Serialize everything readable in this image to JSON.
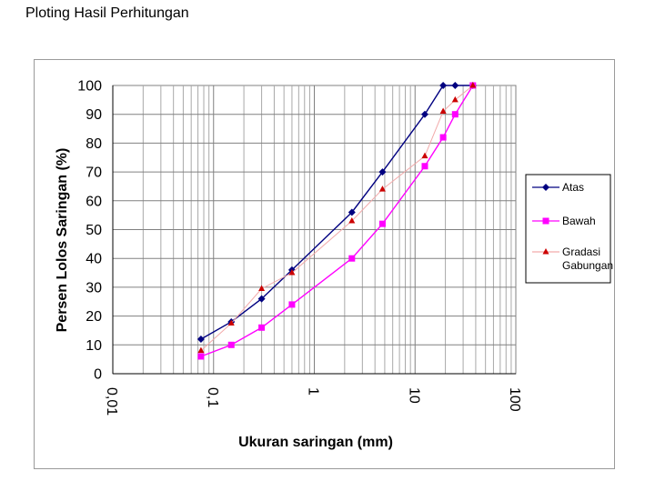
{
  "slide": {
    "title": "Ploting Hasil Perhitungan"
  },
  "chart_data": {
    "type": "scatter",
    "xscale": "log",
    "xlim": [
      0.01,
      100
    ],
    "ylim": [
      0,
      100
    ],
    "grid": true,
    "xlabel": "Ukuran saringan (mm)",
    "ylabel": "Persen Lolos Saringan (%)",
    "x_tick_labels": [
      "0,01",
      "0,1",
      "1",
      "10",
      "100"
    ],
    "y_tick_labels": [
      "0",
      "10",
      "20",
      "30",
      "40",
      "50",
      "60",
      "70",
      "80",
      "90",
      "100"
    ],
    "legend_position": "right",
    "series": [
      {
        "name": "Atas",
        "color": "#000080",
        "marker": "diamond",
        "x": [
          0.075,
          0.15,
          0.3,
          0.6,
          2.36,
          4.75,
          12.5,
          19,
          25,
          37.5
        ],
        "y": [
          12,
          18,
          26,
          36,
          56,
          70,
          90,
          100,
          100,
          100
        ]
      },
      {
        "name": "Bawah",
        "color": "#ff00ff",
        "marker": "square",
        "x": [
          0.075,
          0.15,
          0.3,
          0.6,
          2.36,
          4.75,
          12.5,
          19,
          25,
          37.5
        ],
        "y": [
          6,
          10,
          16,
          24,
          40,
          52,
          72,
          82,
          90,
          100
        ]
      },
      {
        "name": "Gradasi Gabungan",
        "color": "#cc0000",
        "line_color": "#f2aaaa",
        "marker": "triangle",
        "x": [
          0.075,
          0.15,
          0.3,
          0.6,
          2.36,
          4.75,
          12.5,
          19,
          25,
          37.5
        ],
        "y": [
          8,
          17.5,
          29.5,
          35,
          53,
          64,
          75.5,
          91,
          95,
          100
        ]
      }
    ]
  }
}
